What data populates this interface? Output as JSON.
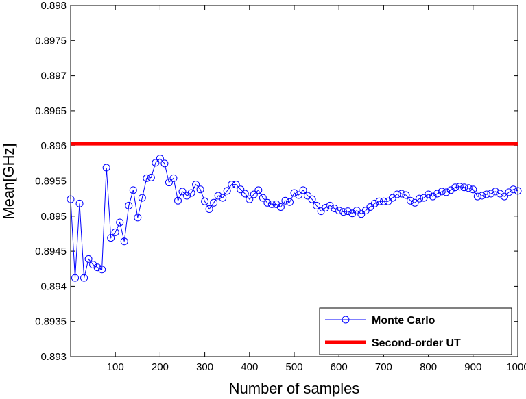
{
  "chart_data": {
    "type": "line",
    "title": "",
    "xlabel": "Number of samples",
    "ylabel": "Mean[GHz]",
    "xlim": [
      0,
      1000
    ],
    "ylim": [
      0.893,
      0.898
    ],
    "x_ticks": [
      100,
      200,
      300,
      400,
      500,
      600,
      700,
      800,
      900,
      1000
    ],
    "x_tick_labels": [
      "100",
      "200",
      "300",
      "400",
      "500",
      "600",
      "700",
      "800",
      "900",
      "1000"
    ],
    "y_ticks": [
      0.893,
      0.8935,
      0.894,
      0.8945,
      0.895,
      0.8955,
      0.896,
      0.8965,
      0.897,
      0.8975,
      0.898
    ],
    "y_tick_labels": [
      "0.893",
      "0.8935",
      "0.894",
      "0.8945",
      "0.895",
      "0.8955",
      "0.896",
      "0.8965",
      "0.897",
      "0.8975",
      "0.898"
    ],
    "grid": false,
    "legend_position": "bottom-right",
    "series": [
      {
        "name": "Monte Carlo",
        "color": "#0000ff",
        "marker": "circle",
        "x": [
          0,
          10,
          20,
          30,
          40,
          50,
          60,
          70,
          80,
          90,
          100,
          110,
          120,
          130,
          140,
          150,
          160,
          170,
          180,
          190,
          200,
          210,
          220,
          230,
          240,
          250,
          260,
          270,
          280,
          290,
          300,
          310,
          320,
          330,
          340,
          350,
          360,
          370,
          380,
          390,
          400,
          410,
          420,
          430,
          440,
          450,
          460,
          470,
          480,
          490,
          500,
          510,
          520,
          530,
          540,
          550,
          560,
          570,
          580,
          590,
          600,
          610,
          620,
          630,
          640,
          650,
          660,
          670,
          680,
          690,
          700,
          710,
          720,
          730,
          740,
          750,
          760,
          770,
          780,
          790,
          800,
          810,
          820,
          830,
          840,
          850,
          860,
          870,
          880,
          890,
          900,
          910,
          920,
          930,
          940,
          950,
          960,
          970,
          980,
          990,
          1000
        ],
        "y": [
          0.89524,
          0.89412,
          0.89518,
          0.89412,
          0.89439,
          0.89431,
          0.89427,
          0.89424,
          0.89569,
          0.89469,
          0.89477,
          0.89491,
          0.89464,
          0.89515,
          0.89537,
          0.89498,
          0.89526,
          0.89554,
          0.89555,
          0.89576,
          0.89582,
          0.89575,
          0.89548,
          0.89554,
          0.89522,
          0.89535,
          0.89529,
          0.89533,
          0.89545,
          0.89538,
          0.89521,
          0.8951,
          0.89519,
          0.89529,
          0.89526,
          0.89536,
          0.89545,
          0.89545,
          0.89538,
          0.89532,
          0.89524,
          0.89531,
          0.89537,
          0.89526,
          0.89519,
          0.89517,
          0.89517,
          0.89513,
          0.89522,
          0.8952,
          0.89533,
          0.8953,
          0.89537,
          0.89529,
          0.89524,
          0.89515,
          0.89507,
          0.89512,
          0.89515,
          0.89511,
          0.89508,
          0.89506,
          0.89507,
          0.89504,
          0.89508,
          0.89503,
          0.89508,
          0.89513,
          0.89518,
          0.89521,
          0.89521,
          0.89521,
          0.89526,
          0.89531,
          0.89532,
          0.8953,
          0.89522,
          0.89519,
          0.89525,
          0.89526,
          0.89531,
          0.89528,
          0.89532,
          0.89535,
          0.89534,
          0.89537,
          0.89541,
          0.89542,
          0.89541,
          0.8954,
          0.89538,
          0.89528,
          0.89529,
          0.89531,
          0.89532,
          0.89535,
          0.89532,
          0.89528,
          0.89534,
          0.89538,
          0.89536
        ]
      },
      {
        "name": "Second-order UT",
        "color": "#ff0000",
        "marker": "none",
        "x": [
          0,
          1000
        ],
        "y": [
          0.89603,
          0.89603
        ]
      }
    ]
  }
}
